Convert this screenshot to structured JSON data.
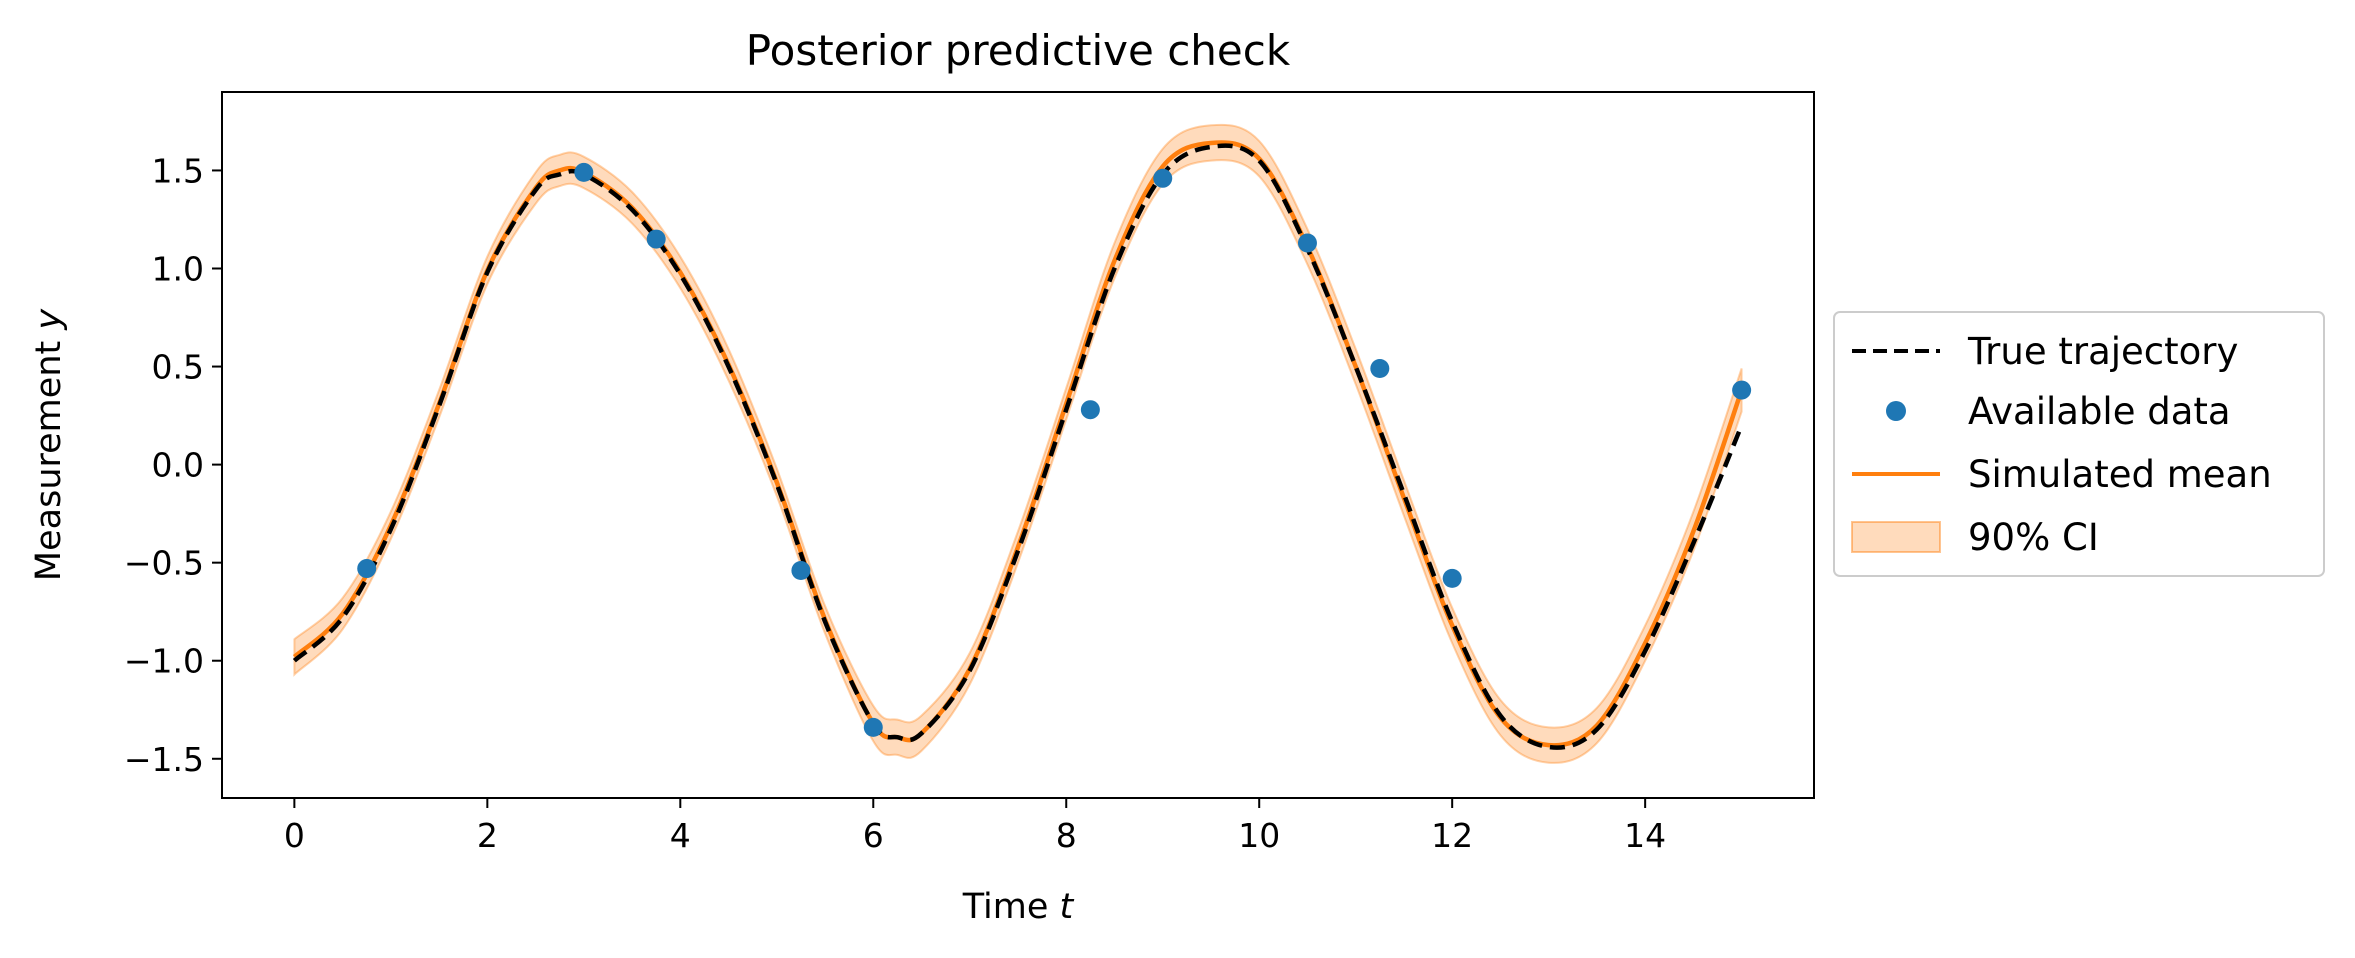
{
  "chart_data": {
    "type": "line",
    "title": "Posterior predictive check",
    "xlabel_text": "Time ",
    "xlabel_var": "t",
    "ylabel_text": "Measurement ",
    "ylabel_var": "y",
    "xlim": [
      -0.75,
      15.75
    ],
    "ylim": [
      -1.7,
      1.9
    ],
    "xticks": [
      0,
      2,
      4,
      6,
      8,
      10,
      12,
      14
    ],
    "xtick_labels": [
      "0",
      "2",
      "4",
      "6",
      "8",
      "10",
      "12",
      "14"
    ],
    "yticks": [
      -1.5,
      -1.0,
      -0.5,
      0.0,
      0.5,
      1.0,
      1.5
    ],
    "ytick_labels": [
      "−1.5",
      "−1.0",
      "−0.5",
      "0.0",
      "0.5",
      "1.0",
      "1.5"
    ],
    "grid": false,
    "legend_position": "outside-right",
    "series": [
      {
        "name": "True trajectory",
        "style": "dashed",
        "color": "#000000",
        "x": [
          0,
          0.5,
          1,
          1.5,
          2,
          2.5,
          2.75,
          3,
          3.5,
          4,
          4.5,
          5,
          5.5,
          6,
          6.25,
          6.5,
          7,
          7.5,
          8,
          8.5,
          9,
          9.5,
          10,
          10.5,
          11,
          11.5,
          12,
          12.5,
          13,
          13.5,
          14,
          14.5,
          15
        ],
        "y": [
          -1.0,
          -0.78,
          -0.33,
          0.3,
          0.98,
          1.4,
          1.48,
          1.48,
          1.3,
          0.97,
          0.5,
          -0.1,
          -0.8,
          -1.32,
          -1.39,
          -1.37,
          -1.05,
          -0.44,
          0.28,
          1.0,
          1.48,
          1.62,
          1.55,
          1.1,
          0.5,
          -0.15,
          -0.8,
          -1.28,
          -1.44,
          -1.35,
          -0.95,
          -0.4,
          0.2
        ]
      },
      {
        "name": "Available data",
        "style": "markers",
        "color": "#1f77b4",
        "x": [
          0.75,
          3.0,
          3.75,
          5.25,
          6.0,
          8.25,
          9.0,
          10.5,
          11.25,
          12.0,
          15.0
        ],
        "y": [
          -0.53,
          1.49,
          1.15,
          -0.54,
          -1.34,
          0.28,
          1.46,
          1.13,
          0.49,
          -0.58,
          0.38
        ]
      },
      {
        "name": "Simulated mean",
        "style": "solid",
        "color": "#ff7f0e",
        "x": [
          0,
          0.5,
          1,
          1.5,
          2,
          2.5,
          2.75,
          3,
          3.5,
          4,
          4.5,
          5,
          5.5,
          6,
          6.25,
          6.5,
          7,
          7.5,
          8,
          8.5,
          9,
          9.5,
          10,
          10.5,
          11,
          11.5,
          12,
          12.5,
          13,
          13.5,
          14,
          14.5,
          15
        ],
        "y": [
          -0.98,
          -0.76,
          -0.31,
          0.31,
          0.99,
          1.41,
          1.5,
          1.49,
          1.31,
          0.98,
          0.51,
          -0.09,
          -0.79,
          -1.32,
          -1.39,
          -1.37,
          -1.04,
          -0.42,
          0.31,
          1.04,
          1.52,
          1.64,
          1.56,
          1.11,
          0.5,
          -0.17,
          -0.82,
          -1.29,
          -1.43,
          -1.33,
          -0.91,
          -0.34,
          0.38
        ]
      }
    ],
    "band": {
      "name": "90% CI",
      "color": "#ff7f0e",
      "opacity": 0.28,
      "x": [
        0,
        0.5,
        1,
        1.5,
        2,
        2.5,
        2.75,
        3,
        3.5,
        4,
        4.5,
        5,
        5.5,
        6,
        6.25,
        6.5,
        7,
        7.5,
        8,
        8.5,
        9,
        9.5,
        10,
        10.5,
        11,
        11.5,
        12,
        12.5,
        13,
        13.5,
        14,
        14.5,
        15
      ],
      "lower": [
        -1.07,
        -0.84,
        -0.38,
        0.24,
        0.92,
        1.33,
        1.42,
        1.41,
        1.23,
        0.9,
        0.43,
        -0.16,
        -0.86,
        -1.41,
        -1.48,
        -1.46,
        -1.12,
        -0.5,
        0.23,
        0.95,
        1.43,
        1.55,
        1.47,
        1.02,
        0.41,
        -0.26,
        -0.91,
        -1.38,
        -1.52,
        -1.42,
        -1.0,
        -0.44,
        0.27
      ],
      "upper": [
        -0.89,
        -0.68,
        -0.24,
        0.38,
        1.06,
        1.49,
        1.58,
        1.57,
        1.39,
        1.06,
        0.59,
        -0.02,
        -0.72,
        -1.23,
        -1.3,
        -1.28,
        -0.96,
        -0.34,
        0.39,
        1.13,
        1.61,
        1.73,
        1.65,
        1.2,
        0.59,
        -0.08,
        -0.73,
        -1.2,
        -1.34,
        -1.24,
        -0.82,
        -0.24,
        0.49
      ]
    }
  }
}
